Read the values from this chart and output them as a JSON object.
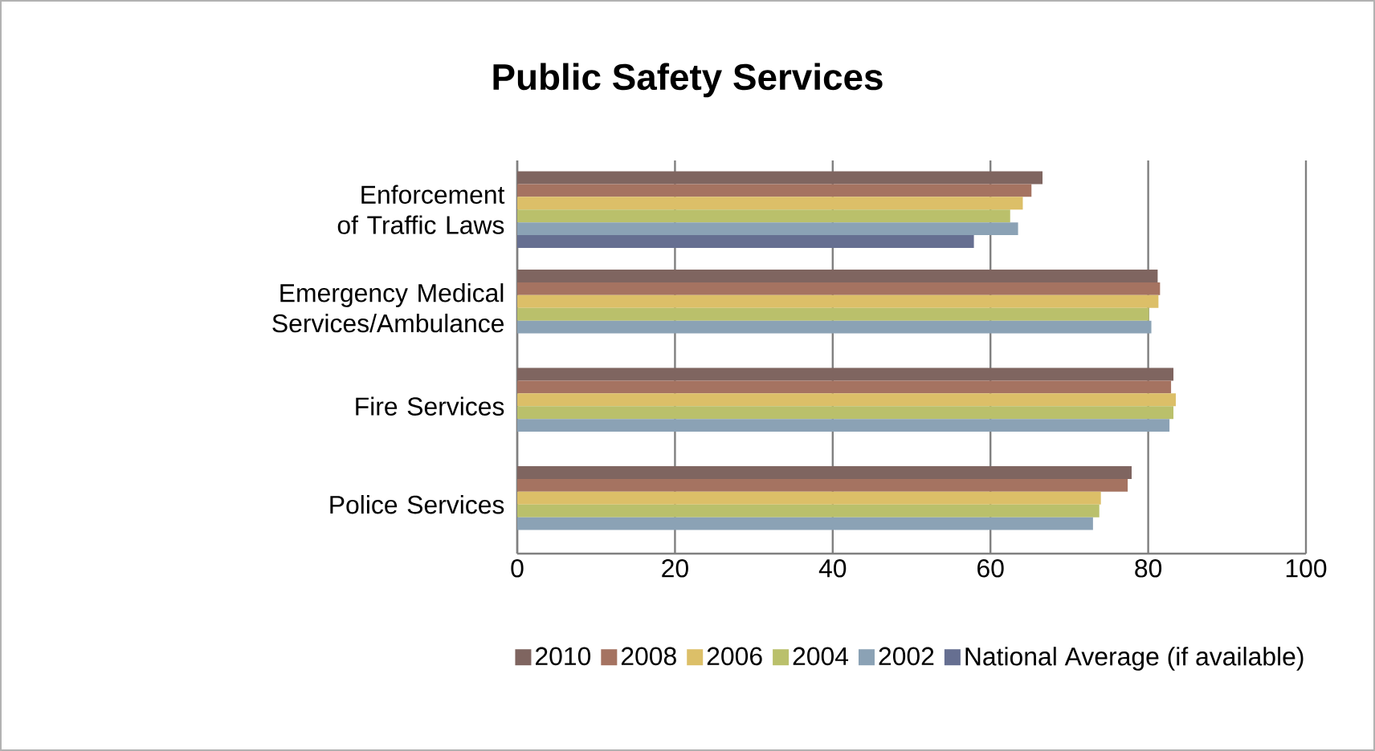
{
  "chart_data": {
    "type": "bar",
    "orientation": "horizontal",
    "title": "Public Safety Services",
    "categories": [
      "Enforcement of Traffic Laws",
      "Emergency Medical Services/Ambulance",
      "Fire Services",
      "Police Services"
    ],
    "series": [
      {
        "name": "2010",
        "color": "#7f6560",
        "values": [
          66.6,
          81.2,
          83.2,
          77.9
        ]
      },
      {
        "name": "2008",
        "color": "#a57361",
        "values": [
          65.2,
          81.5,
          82.9,
          77.4
        ]
      },
      {
        "name": "2006",
        "color": "#dcbf68",
        "values": [
          64.1,
          81.3,
          83.5,
          74.0
        ]
      },
      {
        "name": "2004",
        "color": "#bac06b",
        "values": [
          62.5,
          80.1,
          83.2,
          73.8
        ]
      },
      {
        "name": "2002",
        "color": "#8ba2b5",
        "values": [
          63.5,
          80.4,
          82.7,
          73.0
        ]
      },
      {
        "name": "National Average (if available)",
        "color": "#666f91",
        "values": [
          57.9,
          null,
          null,
          null
        ]
      }
    ],
    "xlim": [
      0,
      100
    ],
    "xticks": [
      0,
      20,
      40,
      60,
      80,
      100
    ],
    "grid": "x",
    "legend": "bottom"
  }
}
